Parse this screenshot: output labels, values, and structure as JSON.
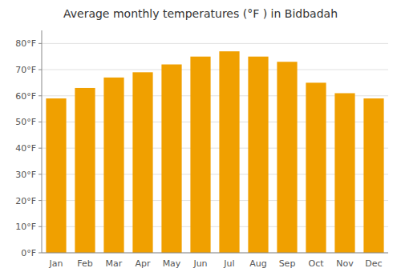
{
  "chart_data": {
    "type": "bar",
    "title": "Average monthly temperatures (°F ) in Bidbadah",
    "categories": [
      "Jan",
      "Feb",
      "Mar",
      "Apr",
      "May",
      "Jun",
      "Jul",
      "Aug",
      "Sep",
      "Oct",
      "Nov",
      "Dec"
    ],
    "values": [
      59,
      63,
      67,
      69,
      72,
      75,
      77,
      75,
      73,
      65,
      61,
      59
    ],
    "color": "#F0A000",
    "ylim": [
      0,
      85
    ],
    "yticks": [
      {
        "value": 0,
        "label": "0°F"
      },
      {
        "value": 10,
        "label": "10°F"
      },
      {
        "value": 20,
        "label": "20°F"
      },
      {
        "value": 30,
        "label": "30°F"
      },
      {
        "value": 40,
        "label": "40°F"
      },
      {
        "value": 50,
        "label": "50°F"
      },
      {
        "value": 60,
        "label": "60°F"
      },
      {
        "value": 70,
        "label": "70°F"
      },
      {
        "value": 80,
        "label": "80°F"
      }
    ],
    "grid": true
  }
}
